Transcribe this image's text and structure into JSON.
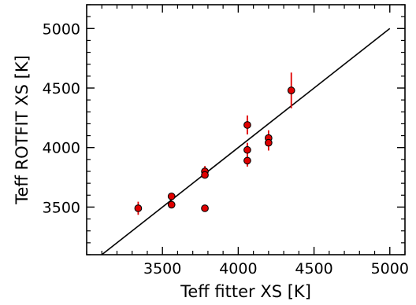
{
  "chart_data": {
    "type": "scatter",
    "title": "",
    "xlabel": "Teff fitter XS [K]",
    "ylabel": "Teff ROTFIT XS [K]",
    "xlim": [
      3000,
      5100
    ],
    "ylim": [
      3100,
      5200
    ],
    "x_ticks": [
      3500,
      4000,
      4500,
      5000
    ],
    "y_ticks": [
      3500,
      4000,
      4500,
      5000
    ],
    "x_minor_step": 100,
    "y_minor_step": 100,
    "grid": false,
    "legend": "none",
    "marker_color": "#e00000",
    "marker_edge_color": "#000000",
    "errorbar_color": "#e00000",
    "reference_line": {
      "x": [
        3100,
        5000
      ],
      "y": [
        3100,
        5000
      ],
      "color": "#000000"
    },
    "points": [
      {
        "x": 3340,
        "y": 3490,
        "yerr": 55
      },
      {
        "x": 3560,
        "y": 3590,
        "yerr": 0
      },
      {
        "x": 3560,
        "y": 3520,
        "yerr": 0
      },
      {
        "x": 3780,
        "y": 3800,
        "yerr": 45
      },
      {
        "x": 3780,
        "y": 3770,
        "yerr": 0
      },
      {
        "x": 3780,
        "y": 3490,
        "yerr": 0
      },
      {
        "x": 4060,
        "y": 4190,
        "yerr": 80
      },
      {
        "x": 4060,
        "y": 3980,
        "yerr": 60
      },
      {
        "x": 4060,
        "y": 3890,
        "yerr": 50
      },
      {
        "x": 4200,
        "y": 4080,
        "yerr": 65
      },
      {
        "x": 4200,
        "y": 4040,
        "yerr": 65
      },
      {
        "x": 4350,
        "y": 4480,
        "yerr": 150
      }
    ]
  }
}
